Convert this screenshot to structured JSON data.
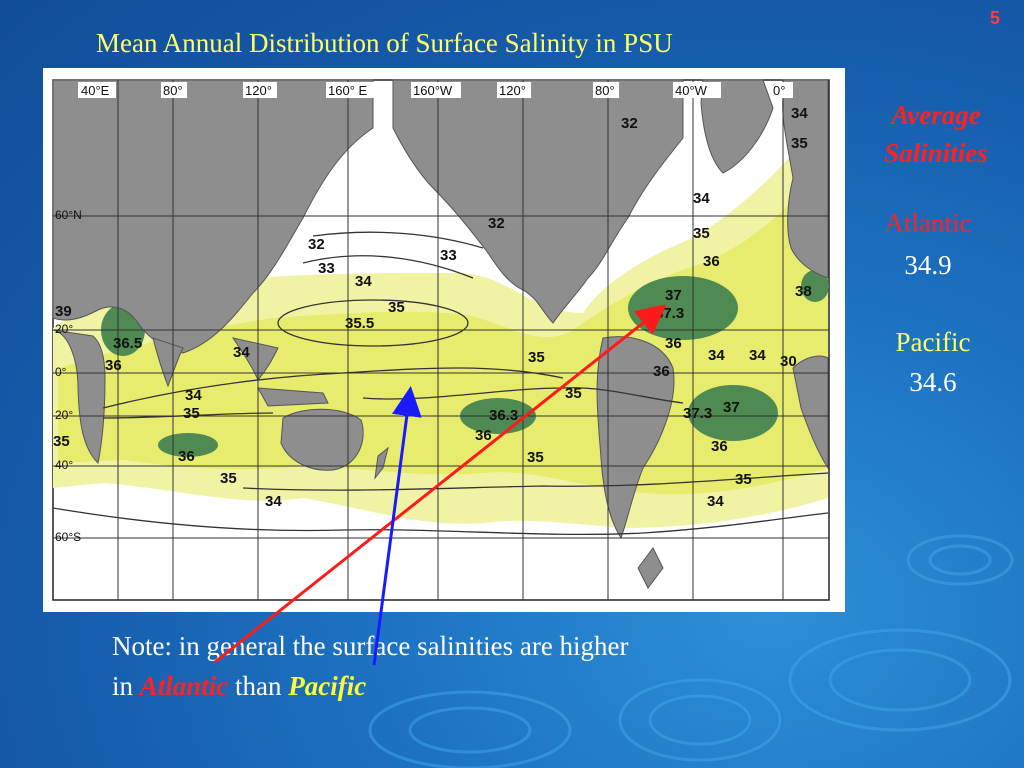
{
  "slide": {
    "number": "5",
    "title": "Mean Annual Distribution of Surface Salinity in  PSU"
  },
  "sidebar": {
    "heading_line1": "Average",
    "heading_line2": "Salinities",
    "atlantic_label": "Atlantic",
    "atlantic_value": "34.9",
    "pacific_label": "Pacific",
    "pacific_value": "34.6"
  },
  "note": {
    "line1": "Note:  in general the surface salinities are higher",
    "line2_prefix": "in ",
    "atlantic": "Atlantic",
    "middle": " than ",
    "pacific": "Pacific"
  },
  "map": {
    "longitude_labels": [
      "40°E",
      "80°",
      "120°",
      "160° E",
      "160°W",
      "120°",
      "80°",
      "40°W",
      "0°"
    ],
    "latitude_labels": [
      "60°N",
      "20°",
      "0°",
      "20°",
      "40°",
      "60°S"
    ],
    "contour_labels": [
      "32",
      "34",
      "35",
      "34",
      "35",
      "32",
      "32",
      "33",
      "33",
      "34",
      "35",
      "35.5",
      "36",
      "37",
      "37.3",
      "36",
      "38",
      "39",
      "36.5",
      "36",
      "34",
      "35",
      "34",
      "34",
      "30",
      "34",
      "35",
      "36",
      "36.3",
      "36",
      "35",
      "37.3",
      "37",
      "36",
      "35",
      "35",
      "36",
      "35",
      "34",
      "35",
      "34"
    ],
    "colors": {
      "land": "#8e8e8e",
      "sea_low": "#ffffff",
      "sea_mid": "#f1f3a4",
      "sea_high": "#e7ec6e",
      "sea_max": "#4e8a52",
      "grid": "#333333"
    }
  },
  "arrows": {
    "atlantic_color": "#ff1a1a",
    "pacific_color": "#1a1aff"
  }
}
